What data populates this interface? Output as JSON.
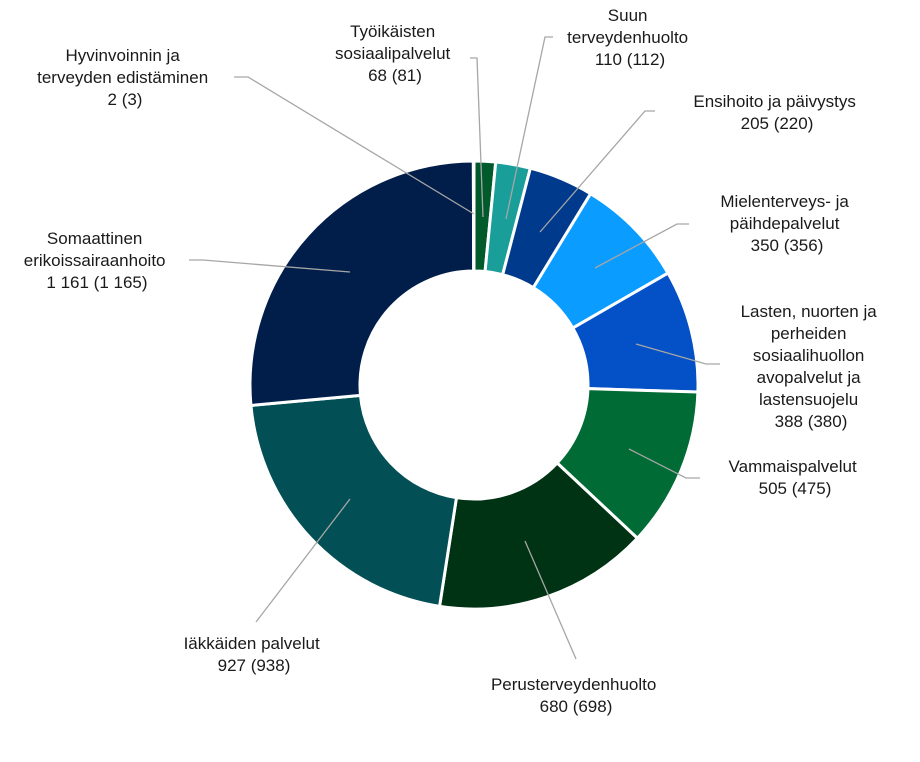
{
  "chart_data": {
    "type": "pie",
    "variant": "donut",
    "title": "",
    "legend": "none",
    "value_format": "value (comparison value)",
    "slices": [
      {
        "label_lines": [
          "Työikäisten",
          "sosiaalipalvelut"
        ],
        "value": 68,
        "comparison": 81,
        "value_text": "68 (81)",
        "color": "#005a2b"
      },
      {
        "label_lines": [
          "Suun",
          "terveydenhuolto"
        ],
        "value": 110,
        "comparison": 112,
        "value_text": "110 (112)",
        "color": "#1a9e9a"
      },
      {
        "label_lines": [
          "Ensihoito ja päivystys"
        ],
        "value": 205,
        "comparison": 220,
        "value_text": "205 (220)",
        "color": "#003a8c"
      },
      {
        "label_lines": [
          "Mielenterveys- ja",
          "päihdepalvelut"
        ],
        "value": 350,
        "comparison": 356,
        "value_text": "350 (356)",
        "color": "#0a9cff"
      },
      {
        "label_lines": [
          "Lasten, nuorten ja",
          "perheiden",
          "sosiaalihuollon",
          "avopalvelut ja",
          "lastensuojelu"
        ],
        "value": 388,
        "comparison": 380,
        "value_text": "388 (380)",
        "color": "#0350c7"
      },
      {
        "label_lines": [
          "Vammaispalvelut"
        ],
        "value": 505,
        "comparison": 475,
        "value_text": "505 (475)",
        "color": "#016b35"
      },
      {
        "label_lines": [
          "Perusterveydenhuolto"
        ],
        "value": 680,
        "comparison": 698,
        "value_text": "680 (698)",
        "color": "#003314"
      },
      {
        "label_lines": [
          "Iäkkäiden palvelut"
        ],
        "value": 927,
        "comparison": 938,
        "value_text": "927 (938)",
        "color": "#034f56"
      },
      {
        "label_lines": [
          "Somaattinen",
          "erikoissairaanhoito"
        ],
        "value": 1161,
        "comparison": 1165,
        "value_text": "1 161 (1 165)",
        "color": "#011e4a"
      },
      {
        "label_lines": [
          "Hyvinvoinnin ja",
          "terveyden edistäminen"
        ],
        "value": 2,
        "comparison": 3,
        "value_text": "2 (3)",
        "color": "#1f3a5f"
      }
    ]
  }
}
